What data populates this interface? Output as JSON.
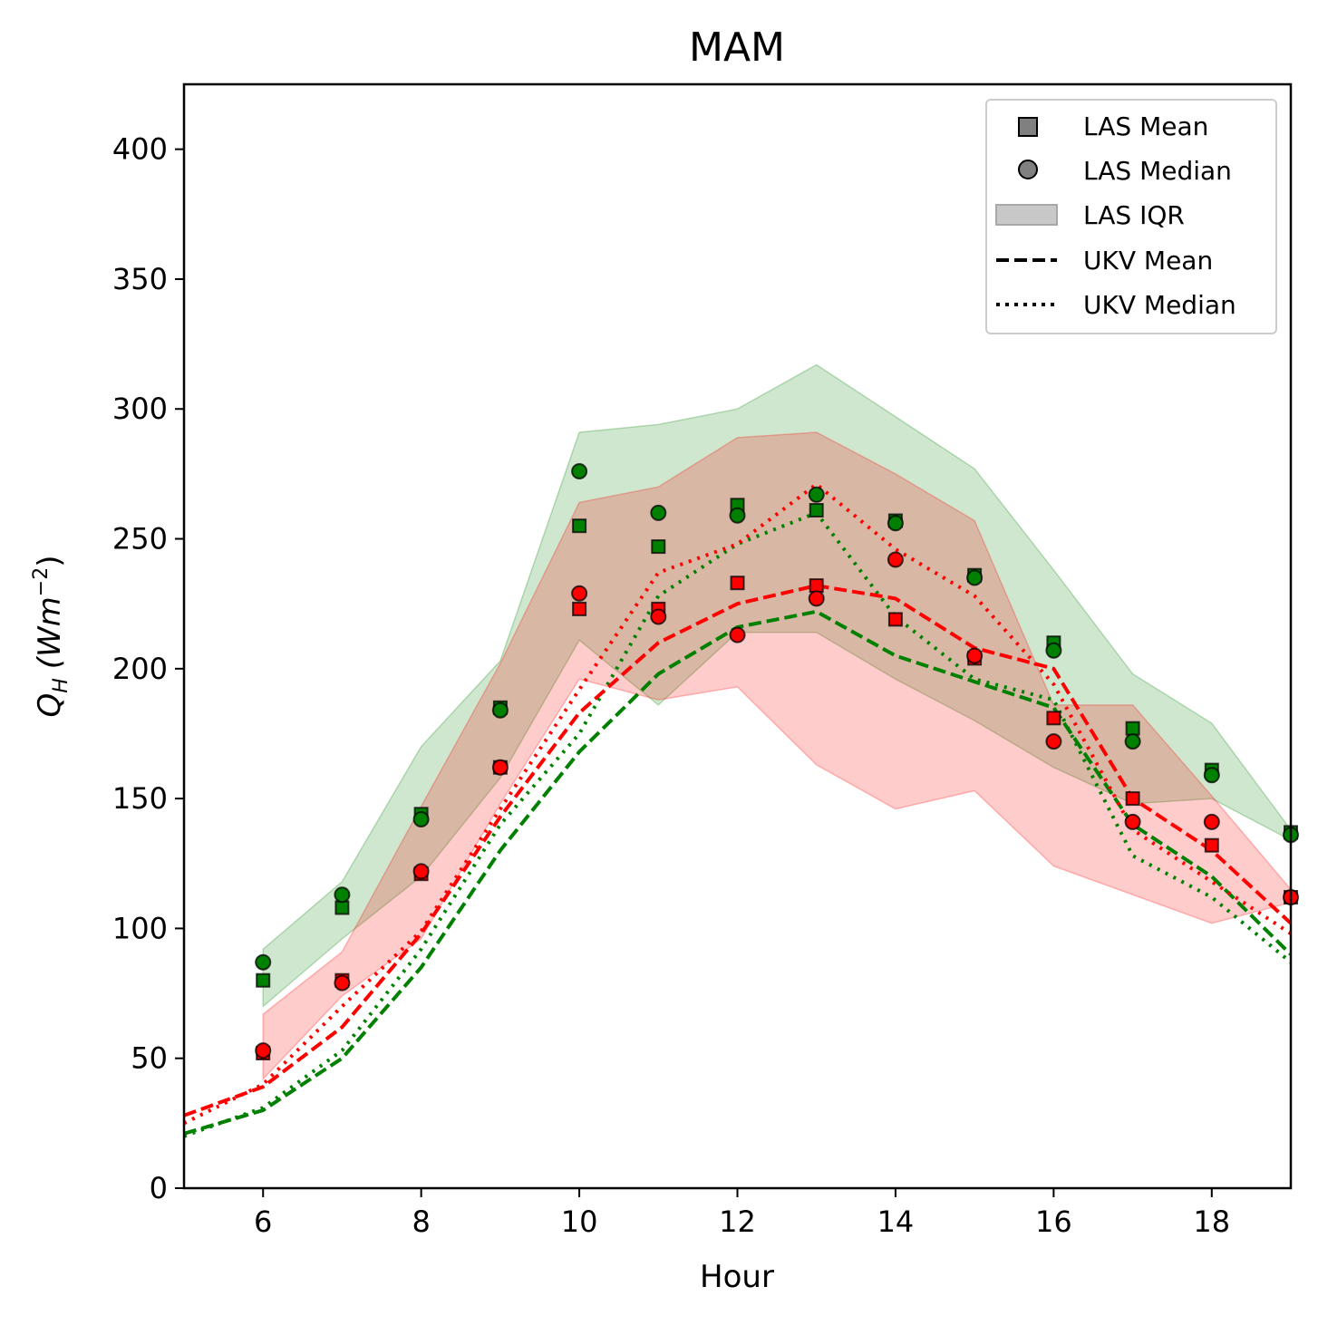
{
  "chart_data": {
    "type": "line",
    "title": "MAM",
    "xlabel": "Hour",
    "ylabel_main": "Q",
    "ylabel_sub": "H",
    "ylabel_units_prefix": "(Wm",
    "ylabel_units_exp": "−2",
    "ylabel_units_suffix": ")",
    "xlim": [
      5,
      19
    ],
    "ylim": [
      0,
      425
    ],
    "xticks": [
      6,
      8,
      10,
      12,
      14,
      16,
      18
    ],
    "yticks": [
      0,
      50,
      100,
      150,
      200,
      250,
      300,
      350,
      400
    ],
    "grid": false,
    "legend_position": "top-right",
    "legend": [
      {
        "label": "LAS Mean",
        "kind": "square"
      },
      {
        "label": "LAS Median",
        "kind": "circle"
      },
      {
        "label": "LAS IQR",
        "kind": "patch"
      },
      {
        "label": "UKV Mean",
        "kind": "dashed"
      },
      {
        "label": "UKV Median",
        "kind": "dotted"
      }
    ],
    "groups": [
      {
        "color": "#008000",
        "iqr_fill": "rgba(0,128,0,0.19)",
        "las_hours": [
          6,
          7,
          8,
          9,
          10,
          11,
          12,
          13,
          14,
          15,
          16,
          17,
          18,
          19
        ],
        "las_mean": [
          80,
          108,
          144,
          185,
          255,
          247,
          263,
          261,
          257,
          236,
          210,
          177,
          161,
          137
        ],
        "las_median": [
          87,
          113,
          142,
          184,
          276,
          260,
          259,
          267,
          256,
          235,
          207,
          172,
          159,
          136
        ],
        "las_iqr_low": [
          70,
          96,
          120,
          158,
          211,
          186,
          214,
          214,
          196,
          180,
          162,
          148,
          150,
          134
        ],
        "las_iqr_high": [
          92,
          118,
          170,
          203,
          291,
          294,
          300,
          317,
          297,
          277,
          238,
          198,
          179,
          138
        ],
        "ukv_x": [
          5,
          6,
          7,
          8,
          9,
          10,
          11,
          12,
          13,
          14,
          15,
          16,
          17,
          18,
          19
        ],
        "ukv_mean": [
          21,
          30,
          50,
          85,
          130,
          168,
          198,
          216,
          222,
          205,
          195,
          185,
          140,
          120,
          90
        ],
        "ukv_median": [
          20,
          31,
          53,
          92,
          140,
          175,
          228,
          248,
          260,
          220,
          196,
          188,
          128,
          112,
          87
        ]
      },
      {
        "color": "#ff0000",
        "iqr_fill": "rgba(255,0,0,0.2)",
        "las_hours": [
          6,
          7,
          8,
          9,
          10,
          11,
          12,
          13,
          14,
          15,
          16,
          17,
          18,
          19
        ],
        "las_mean": [
          52,
          80,
          121,
          162,
          223,
          223,
          233,
          232,
          219,
          204,
          181,
          150,
          132,
          112
        ],
        "las_median": [
          53,
          79,
          122,
          162,
          229,
          220,
          213,
          227,
          242,
          205,
          172,
          141,
          141,
          112
        ],
        "las_iqr_low": [
          42,
          74,
          96,
          148,
          196,
          188,
          193,
          163,
          146,
          153,
          124,
          113,
          102,
          110
        ],
        "las_iqr_high": [
          67,
          91,
          147,
          202,
          264,
          270,
          289,
          291,
          275,
          257,
          186,
          186,
          151,
          115
        ],
        "ukv_x": [
          5,
          6,
          7,
          8,
          9,
          10,
          11,
          12,
          13,
          14,
          15,
          16,
          17,
          18,
          19
        ],
        "ukv_mean": [
          28,
          39,
          62,
          98,
          143,
          183,
          210,
          225,
          232,
          227,
          208,
          200,
          150,
          130,
          102
        ],
        "ukv_median": [
          25,
          40,
          70,
          99,
          146,
          192,
          237,
          248,
          271,
          246,
          228,
          194,
          138,
          118,
          98
        ]
      }
    ]
  }
}
